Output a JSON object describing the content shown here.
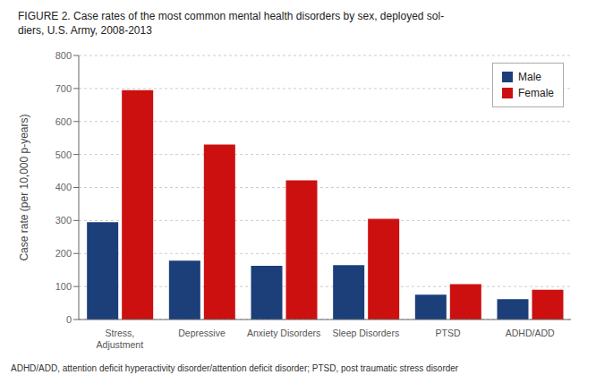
{
  "chart_data": {
    "type": "bar",
    "title": "FIGURE 2. Case rates of the most common mental health disorders by sex, deployed sol-\ndiers, U.S. Army, 2008-2013",
    "annotations": [
      "ADHD/ADD, attention deficit hyperactivity disorder/attention deficit disorder; PTSD, post traumatic stress disorder"
    ],
    "categories": [
      "Stress,\nAdjustment",
      "Depressive",
      "Anxiety Disorders",
      "Sleep Disorders",
      "PTSD",
      "ADHD/ADD"
    ],
    "series": [
      {
        "name": "Male",
        "color": "#1C3F7A",
        "values": [
          295,
          178,
          163,
          165,
          75,
          62
        ]
      },
      {
        "name": "Female",
        "color": "#CC1010",
        "values": [
          695,
          530,
          422,
          305,
          107,
          90
        ]
      }
    ],
    "ylabel": "Case rate (per 10,000 p-years)",
    "ylim": [
      0,
      800
    ],
    "yticks": [
      0,
      100,
      200,
      300,
      400,
      500,
      600,
      700,
      800
    ],
    "grid": true,
    "legend": "upper right"
  }
}
